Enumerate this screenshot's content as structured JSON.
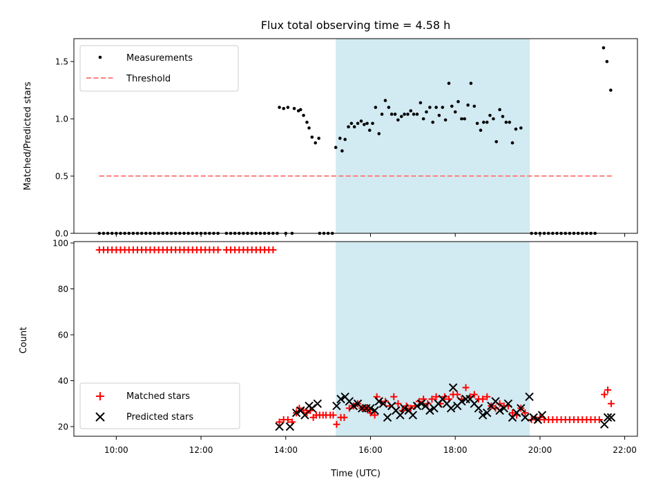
{
  "chart_data": [
    {
      "type": "scatter",
      "title": "Flux total observing time = 4.58 h",
      "xlabel": "",
      "ylabel": "Matched/Predicted stars",
      "xlim": [
        9.0,
        22.3
      ],
      "ylim": [
        0.0,
        1.7
      ],
      "yticks": [
        0.0,
        0.5,
        1.0,
        1.5
      ],
      "ytick_labels": [
        "0.0",
        "0.5",
        "1.0",
        "1.5"
      ],
      "shaded_span": {
        "x0": 15.18,
        "x1": 19.76,
        "color": "#add8e6"
      },
      "legend": {
        "position": "top-left",
        "entries": [
          {
            "label": "Measurements",
            "marker": "dot",
            "color": "#000000"
          },
          {
            "label": "Threshold",
            "marker": "dashed-line",
            "color": "#ff7f7f"
          }
        ]
      },
      "threshold": {
        "y": 0.5,
        "x": [
          9.6,
          21.7
        ]
      },
      "measurements": [
        [
          9.6,
          0
        ],
        [
          9.7,
          0
        ],
        [
          9.8,
          0
        ],
        [
          9.9,
          0
        ],
        [
          10.0,
          0
        ],
        [
          10.1,
          0
        ],
        [
          10.2,
          0
        ],
        [
          10.3,
          0
        ],
        [
          10.4,
          0
        ],
        [
          10.5,
          0
        ],
        [
          10.6,
          0
        ],
        [
          10.7,
          0
        ],
        [
          10.8,
          0
        ],
        [
          10.9,
          0
        ],
        [
          11.0,
          0
        ],
        [
          11.1,
          0
        ],
        [
          11.2,
          0
        ],
        [
          11.3,
          0
        ],
        [
          11.4,
          0
        ],
        [
          11.5,
          0
        ],
        [
          11.6,
          0
        ],
        [
          11.7,
          0
        ],
        [
          11.8,
          0
        ],
        [
          11.9,
          0
        ],
        [
          12.0,
          0
        ],
        [
          12.1,
          0
        ],
        [
          12.2,
          0
        ],
        [
          12.3,
          0
        ],
        [
          12.4,
          0
        ],
        [
          12.6,
          0
        ],
        [
          12.7,
          0
        ],
        [
          12.8,
          0
        ],
        [
          12.9,
          0
        ],
        [
          13.0,
          0
        ],
        [
          13.1,
          0
        ],
        [
          13.2,
          0
        ],
        [
          13.3,
          0
        ],
        [
          13.4,
          0
        ],
        [
          13.5,
          0
        ],
        [
          13.6,
          0
        ],
        [
          13.7,
          0
        ],
        [
          13.8,
          0
        ],
        [
          13.85,
          1.1
        ],
        [
          13.95,
          1.09
        ],
        [
          14.0,
          0
        ],
        [
          14.05,
          1.1
        ],
        [
          14.15,
          0
        ],
        [
          14.2,
          1.09
        ],
        [
          14.3,
          1.07
        ],
        [
          14.35,
          1.08
        ],
        [
          14.42,
          1.03
        ],
        [
          14.5,
          0.97
        ],
        [
          14.55,
          0.92
        ],
        [
          14.62,
          0.84
        ],
        [
          14.7,
          0.79
        ],
        [
          14.78,
          0.83
        ],
        [
          14.8,
          0
        ],
        [
          14.9,
          0
        ],
        [
          15.0,
          0
        ],
        [
          15.1,
          0
        ],
        [
          15.18,
          0.75
        ],
        [
          15.28,
          0.83
        ],
        [
          15.33,
          0.72
        ],
        [
          15.4,
          0.82
        ],
        [
          15.48,
          0.93
        ],
        [
          15.55,
          0.96
        ],
        [
          15.62,
          0.93
        ],
        [
          15.7,
          0.96
        ],
        [
          15.78,
          0.98
        ],
        [
          15.85,
          0.95
        ],
        [
          15.92,
          0.96
        ],
        [
          15.98,
          0.9
        ],
        [
          16.05,
          0.96
        ],
        [
          16.12,
          1.1
        ],
        [
          16.2,
          0.87
        ],
        [
          16.27,
          1.04
        ],
        [
          16.35,
          1.16
        ],
        [
          16.43,
          1.1
        ],
        [
          16.5,
          1.04
        ],
        [
          16.58,
          1.04
        ],
        [
          16.65,
          0.99
        ],
        [
          16.73,
          1.02
        ],
        [
          16.8,
          1.04
        ],
        [
          16.88,
          1.04
        ],
        [
          16.95,
          1.07
        ],
        [
          17.02,
          1.04
        ],
        [
          17.1,
          1.04
        ],
        [
          17.18,
          1.14
        ],
        [
          17.25,
          1.0
        ],
        [
          17.32,
          1.06
        ],
        [
          17.4,
          1.1
        ],
        [
          17.47,
          0.97
        ],
        [
          17.55,
          1.1
        ],
        [
          17.62,
          1.03
        ],
        [
          17.7,
          1.1
        ],
        [
          17.77,
          0.99
        ],
        [
          17.85,
          1.31
        ],
        [
          17.92,
          1.11
        ],
        [
          18.0,
          1.06
        ],
        [
          18.07,
          1.15
        ],
        [
          18.15,
          1.0
        ],
        [
          18.22,
          1.0
        ],
        [
          18.3,
          1.12
        ],
        [
          18.37,
          1.31
        ],
        [
          18.45,
          1.11
        ],
        [
          18.52,
          0.96
        ],
        [
          18.6,
          0.9
        ],
        [
          18.67,
          0.97
        ],
        [
          18.75,
          0.97
        ],
        [
          18.82,
          1.03
        ],
        [
          18.9,
          1.0
        ],
        [
          18.97,
          0.8
        ],
        [
          19.05,
          1.08
        ],
        [
          19.12,
          1.02
        ],
        [
          19.2,
          0.97
        ],
        [
          19.28,
          0.97
        ],
        [
          19.35,
          0.79
        ],
        [
          19.43,
          0.91
        ],
        [
          19.55,
          0.92
        ],
        [
          19.8,
          0
        ],
        [
          19.9,
          0
        ],
        [
          20.0,
          0
        ],
        [
          20.1,
          0
        ],
        [
          20.2,
          0
        ],
        [
          20.3,
          0
        ],
        [
          20.4,
          0
        ],
        [
          20.5,
          0
        ],
        [
          20.6,
          0
        ],
        [
          20.7,
          0
        ],
        [
          20.8,
          0
        ],
        [
          20.9,
          0
        ],
        [
          21.0,
          0
        ],
        [
          21.1,
          0
        ],
        [
          21.2,
          0
        ],
        [
          21.3,
          0
        ],
        [
          21.5,
          1.62
        ],
        [
          21.58,
          1.5
        ],
        [
          21.67,
          1.25
        ]
      ]
    },
    {
      "type": "scatter",
      "title": "",
      "xlabel": "Time (UTC)",
      "ylabel": "Count",
      "xlim": [
        9.0,
        22.3
      ],
      "ylim": [
        15.8,
        100.6
      ],
      "yticks": [
        20,
        40,
        60,
        80,
        100
      ],
      "ytick_labels": [
        "20",
        "40",
        "60",
        "80",
        "100"
      ],
      "xticks": [
        10,
        12,
        14,
        16,
        18,
        20,
        22
      ],
      "xtick_labels": [
        "10:00",
        "12:00",
        "14:00",
        "16:00",
        "18:00",
        "20:00",
        "22:00"
      ],
      "shaded_span": {
        "x0": 15.18,
        "x1": 19.76,
        "color": "#add8e6"
      },
      "legend": {
        "position": "bottom-left",
        "entries": [
          {
            "label": "Matched stars",
            "marker": "plus",
            "color": "#ff0000"
          },
          {
            "label": "Predicted stars",
            "marker": "x",
            "color": "#000000"
          }
        ]
      },
      "matched_stars": [
        [
          9.6,
          97
        ],
        [
          9.7,
          97
        ],
        [
          9.8,
          97
        ],
        [
          9.9,
          97
        ],
        [
          10.0,
          97
        ],
        [
          10.1,
          97
        ],
        [
          10.2,
          97
        ],
        [
          10.3,
          97
        ],
        [
          10.4,
          97
        ],
        [
          10.5,
          97
        ],
        [
          10.6,
          97
        ],
        [
          10.7,
          97
        ],
        [
          10.8,
          97
        ],
        [
          10.9,
          97
        ],
        [
          11.0,
          97
        ],
        [
          11.1,
          97
        ],
        [
          11.2,
          97
        ],
        [
          11.3,
          97
        ],
        [
          11.4,
          97
        ],
        [
          11.5,
          97
        ],
        [
          11.6,
          97
        ],
        [
          11.7,
          97
        ],
        [
          11.8,
          97
        ],
        [
          11.9,
          97
        ],
        [
          12.0,
          97
        ],
        [
          12.1,
          97
        ],
        [
          12.2,
          97
        ],
        [
          12.3,
          97
        ],
        [
          12.4,
          97
        ],
        [
          12.6,
          97
        ],
        [
          12.7,
          97
        ],
        [
          12.8,
          97
        ],
        [
          12.9,
          97
        ],
        [
          13.0,
          97
        ],
        [
          13.1,
          97
        ],
        [
          13.2,
          97
        ],
        [
          13.3,
          97
        ],
        [
          13.4,
          97
        ],
        [
          13.5,
          97
        ],
        [
          13.6,
          97
        ],
        [
          13.7,
          97
        ],
        [
          13.85,
          22
        ],
        [
          13.95,
          23
        ],
        [
          14.05,
          23
        ],
        [
          14.15,
          22
        ],
        [
          14.25,
          26
        ],
        [
          14.32,
          28
        ],
        [
          14.42,
          27
        ],
        [
          14.5,
          26
        ],
        [
          14.58,
          27
        ],
        [
          14.65,
          24
        ],
        [
          14.72,
          25
        ],
        [
          14.8,
          25
        ],
        [
          14.88,
          25
        ],
        [
          14.95,
          25
        ],
        [
          15.05,
          25
        ],
        [
          15.12,
          25
        ],
        [
          15.2,
          21
        ],
        [
          15.3,
          24
        ],
        [
          15.38,
          24
        ],
        [
          15.5,
          28
        ],
        [
          15.6,
          29
        ],
        [
          15.7,
          30
        ],
        [
          15.8,
          28
        ],
        [
          15.9,
          28
        ],
        [
          16.0,
          26
        ],
        [
          16.1,
          25
        ],
        [
          16.15,
          33
        ],
        [
          16.25,
          31
        ],
        [
          16.35,
          31
        ],
        [
          16.45,
          29
        ],
        [
          16.55,
          33
        ],
        [
          16.65,
          30
        ],
        [
          16.75,
          27
        ],
        [
          16.85,
          29
        ],
        [
          16.95,
          28
        ],
        [
          17.05,
          29
        ],
        [
          17.15,
          31
        ],
        [
          17.25,
          32
        ],
        [
          17.35,
          30
        ],
        [
          17.45,
          32
        ],
        [
          17.55,
          33
        ],
        [
          17.65,
          30
        ],
        [
          17.75,
          33
        ],
        [
          17.85,
          32
        ],
        [
          17.95,
          34
        ],
        [
          18.05,
          34
        ],
        [
          18.15,
          32
        ],
        [
          18.25,
          37
        ],
        [
          18.35,
          33
        ],
        [
          18.45,
          34
        ],
        [
          18.55,
          32
        ],
        [
          18.65,
          32
        ],
        [
          18.75,
          33
        ],
        [
          18.85,
          29
        ],
        [
          18.95,
          28
        ],
        [
          19.05,
          30
        ],
        [
          19.15,
          29
        ],
        [
          19.25,
          29
        ],
        [
          19.35,
          26
        ],
        [
          19.45,
          25
        ],
        [
          19.55,
          28
        ],
        [
          19.65,
          26
        ],
        [
          19.8,
          23
        ],
        [
          19.9,
          23
        ],
        [
          20.0,
          24
        ],
        [
          20.1,
          23
        ],
        [
          20.2,
          23
        ],
        [
          20.3,
          23
        ],
        [
          20.4,
          23
        ],
        [
          20.5,
          23
        ],
        [
          20.6,
          23
        ],
        [
          20.7,
          23
        ],
        [
          20.8,
          23
        ],
        [
          20.9,
          23
        ],
        [
          21.0,
          23
        ],
        [
          21.1,
          23
        ],
        [
          21.2,
          23
        ],
        [
          21.3,
          23
        ],
        [
          21.4,
          23
        ],
        [
          21.52,
          34
        ],
        [
          21.6,
          36
        ],
        [
          21.68,
          30
        ]
      ],
      "predicted_stars": [
        [
          13.85,
          20
        ],
        [
          14.1,
          20
        ],
        [
          14.25,
          26
        ],
        [
          14.35,
          27
        ],
        [
          14.45,
          25
        ],
        [
          14.55,
          29
        ],
        [
          14.62,
          28
        ],
        [
          14.75,
          30
        ],
        [
          15.2,
          29
        ],
        [
          15.3,
          32
        ],
        [
          15.4,
          33
        ],
        [
          15.5,
          31
        ],
        [
          15.6,
          29
        ],
        [
          15.7,
          30
        ],
        [
          15.8,
          28
        ],
        [
          15.9,
          28
        ],
        [
          16.0,
          28
        ],
        [
          16.1,
          27
        ],
        [
          16.2,
          31
        ],
        [
          16.3,
          30
        ],
        [
          16.4,
          24
        ],
        [
          16.5,
          29
        ],
        [
          16.6,
          27
        ],
        [
          16.7,
          25
        ],
        [
          16.8,
          28
        ],
        [
          16.9,
          27
        ],
        [
          17.0,
          25
        ],
        [
          17.1,
          29
        ],
        [
          17.2,
          30
        ],
        [
          17.3,
          29
        ],
        [
          17.4,
          27
        ],
        [
          17.5,
          28
        ],
        [
          17.6,
          30
        ],
        [
          17.7,
          32
        ],
        [
          17.8,
          30
        ],
        [
          17.9,
          28
        ],
        [
          17.95,
          37
        ],
        [
          18.05,
          29
        ],
        [
          18.15,
          31
        ],
        [
          18.25,
          32
        ],
        [
          18.35,
          32
        ],
        [
          18.45,
          30
        ],
        [
          18.55,
          28
        ],
        [
          18.65,
          25
        ],
        [
          18.75,
          26
        ],
        [
          18.85,
          29
        ],
        [
          18.95,
          31
        ],
        [
          19.05,
          27
        ],
        [
          19.15,
          28
        ],
        [
          19.25,
          30
        ],
        [
          19.35,
          24
        ],
        [
          19.45,
          26
        ],
        [
          19.55,
          28
        ],
        [
          19.65,
          24
        ],
        [
          19.75,
          33
        ],
        [
          19.85,
          24
        ],
        [
          19.95,
          23
        ],
        [
          20.05,
          25
        ],
        [
          21.52,
          21
        ],
        [
          21.6,
          24
        ],
        [
          21.68,
          24
        ]
      ]
    }
  ]
}
